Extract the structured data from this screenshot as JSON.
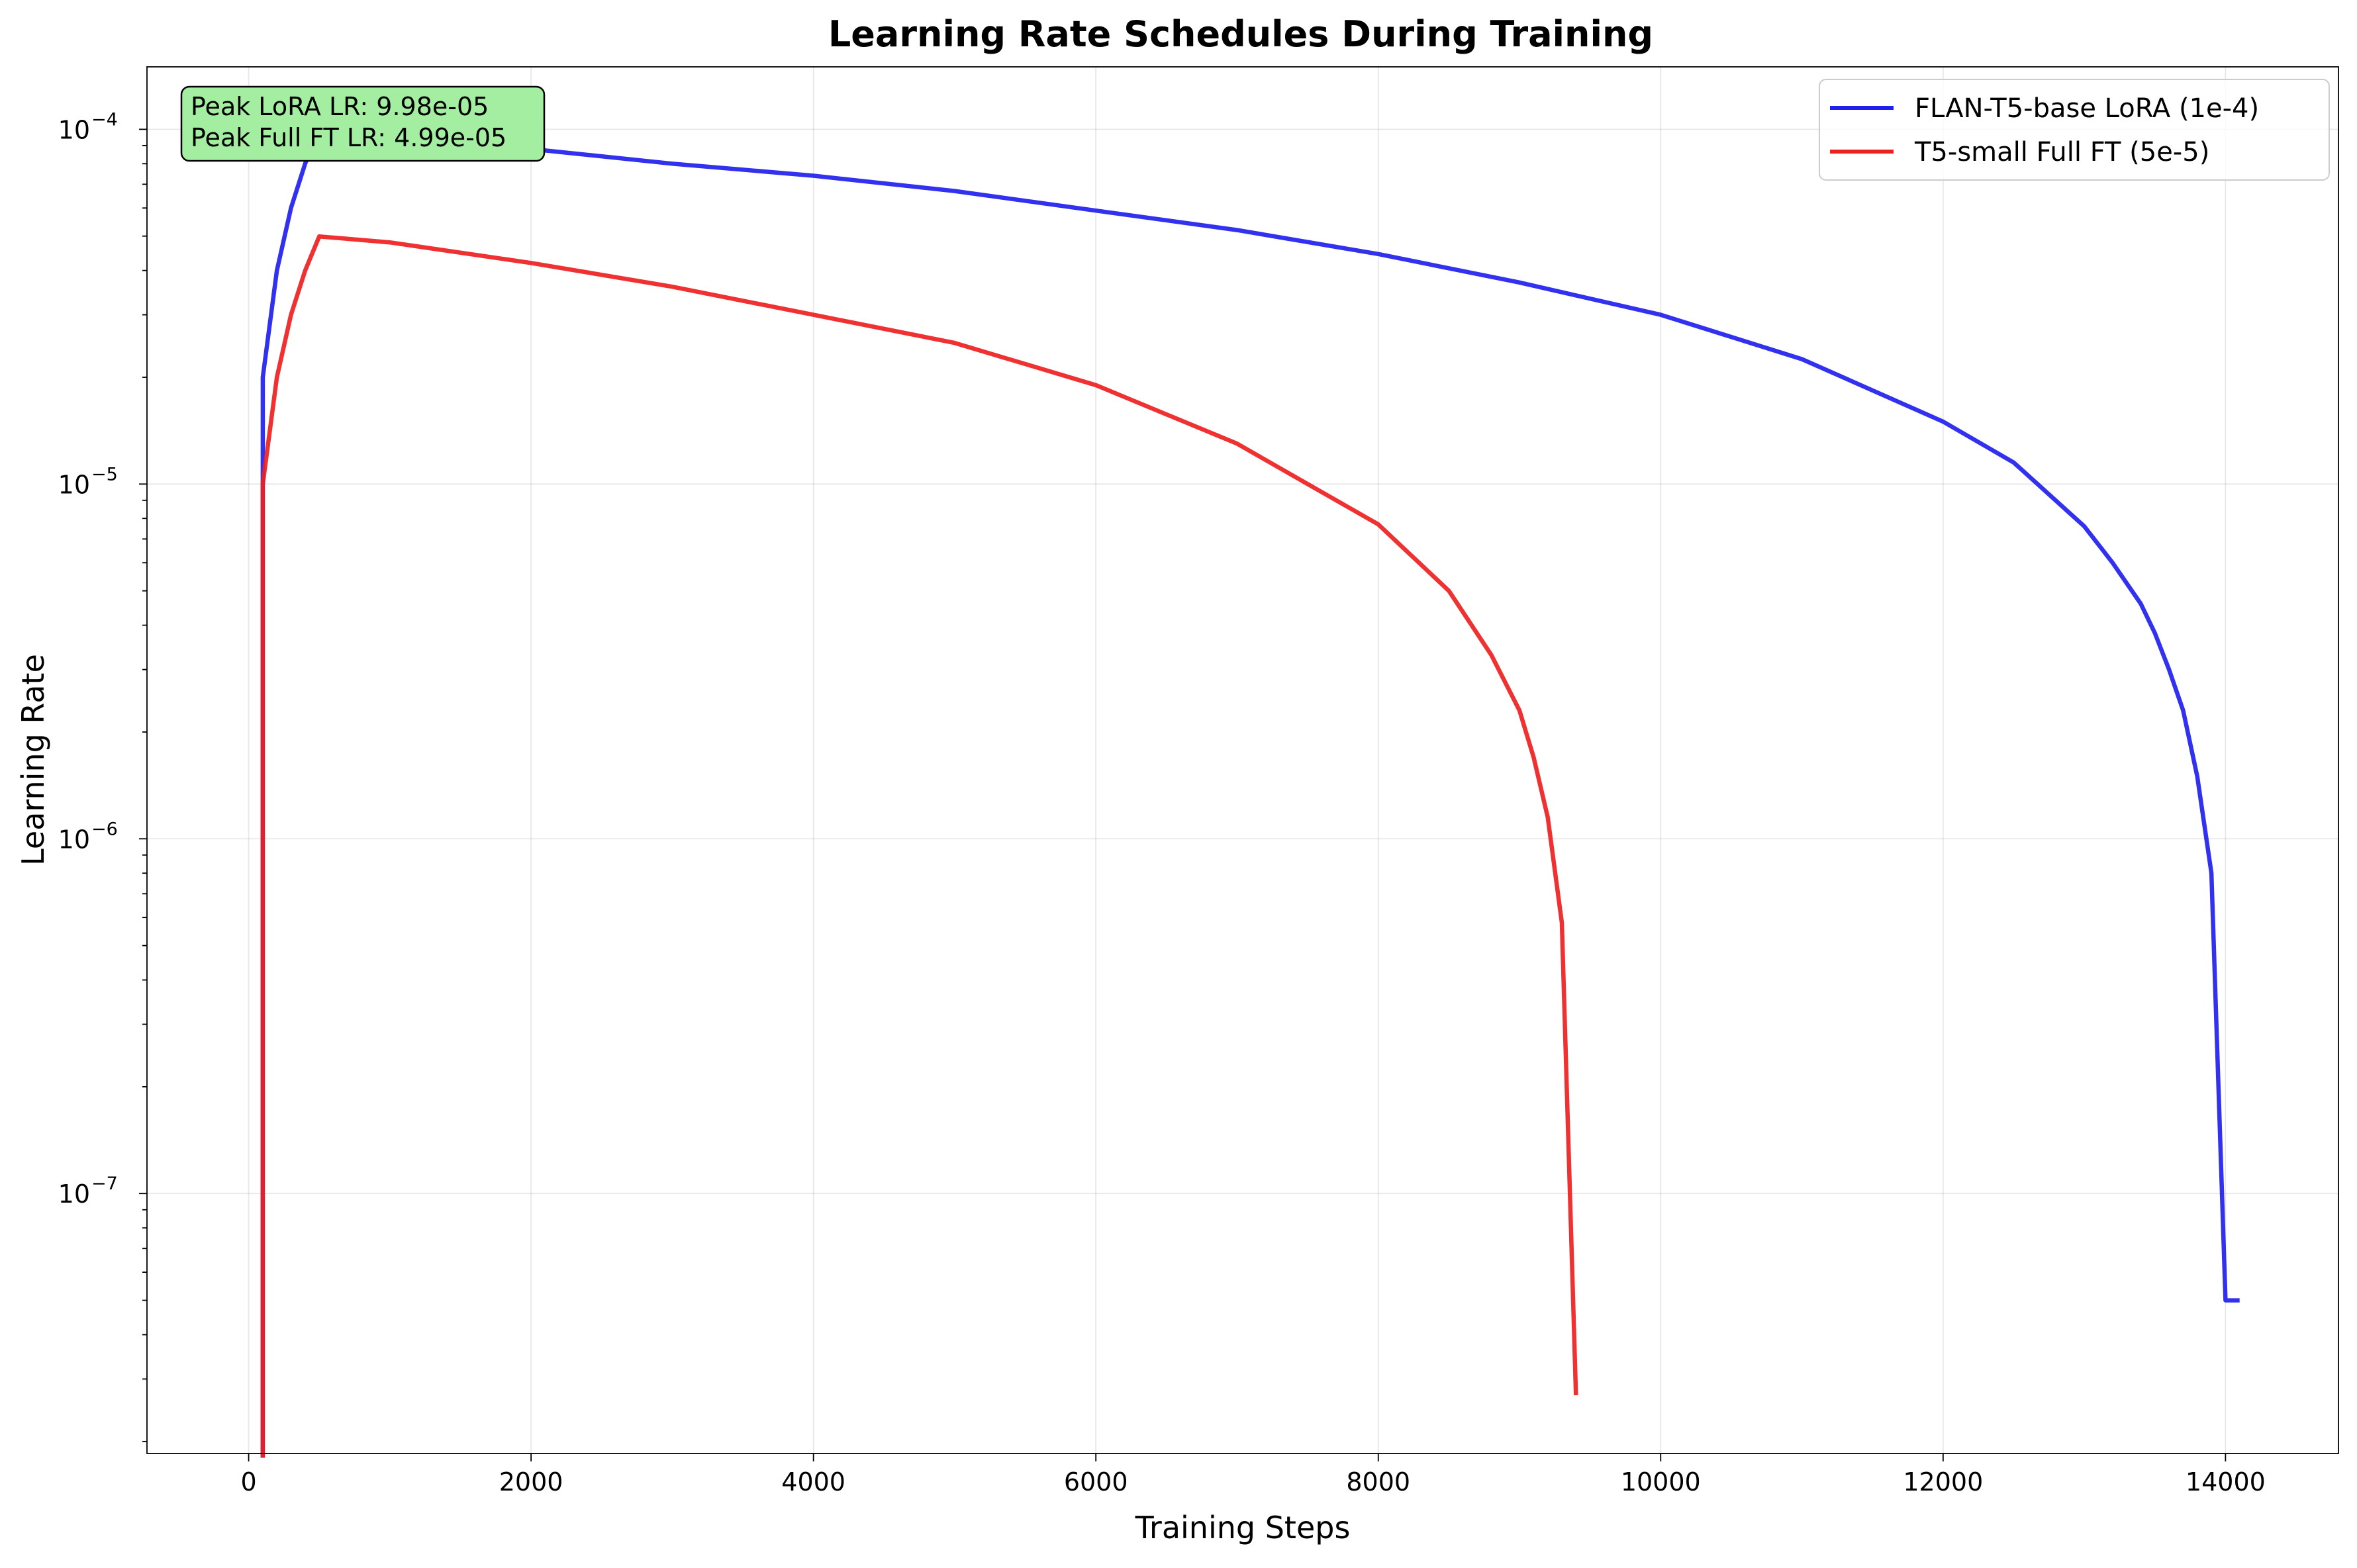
{
  "chart_data": {
    "type": "line",
    "title": "Learning Rate Schedules During Training",
    "xlabel": "Training Steps",
    "ylabel": "Learning Rate",
    "yscale": "log",
    "xlim": [
      -720,
      14800
    ],
    "ylim": [
      1.85e-08,
      0.00015
    ],
    "grid": true,
    "legend_position": "top-right",
    "x_ticks": [
      {
        "value": 0,
        "label": "0"
      },
      {
        "value": 2000,
        "label": "2000"
      },
      {
        "value": 4000,
        "label": "4000"
      },
      {
        "value": 6000,
        "label": "6000"
      },
      {
        "value": 8000,
        "label": "8000"
      },
      {
        "value": 10000,
        "label": "10000"
      },
      {
        "value": 12000,
        "label": "12000"
      },
      {
        "value": 14000,
        "label": "14000"
      }
    ],
    "y_ticks": [
      {
        "value": 1e-07,
        "base": "10",
        "exp": "−7"
      },
      {
        "value": 1e-06,
        "base": "10",
        "exp": "−6"
      },
      {
        "value": 1e-05,
        "base": "10",
        "exp": "−5"
      },
      {
        "value": 0.0001,
        "base": "10",
        "exp": "−4"
      }
    ],
    "series": [
      {
        "name": "FLAN-T5-base LoRA (1e-4)",
        "color": "#2020ee",
        "x": [
          100,
          100,
          200,
          300,
          400,
          500,
          1000,
          2000,
          3000,
          4000,
          5000,
          6000,
          7000,
          8000,
          9000,
          10000,
          11000,
          12000,
          12500,
          13000,
          13200,
          13400,
          13500,
          13600,
          13700,
          13800,
          13900,
          14000,
          14100
        ],
        "y": [
          1.8e-08,
          2e-05,
          4e-05,
          6e-05,
          8e-05,
          9.98e-05,
          9.6e-05,
          8.8e-05,
          8e-05,
          7.4e-05,
          6.7e-05,
          5.9e-05,
          5.2e-05,
          4.45e-05,
          3.7e-05,
          3e-05,
          2.25e-05,
          1.5e-05,
          1.15e-05,
          7.6e-06,
          6e-06,
          4.6e-06,
          3.8e-06,
          3e-06,
          2.3e-06,
          1.5e-06,
          8e-07,
          5e-08,
          5e-08
        ]
      },
      {
        "name": "T5-small Full FT (5e-5)",
        "color": "#ee2020",
        "x": [
          100,
          100,
          200,
          300,
          400,
          500,
          1000,
          2000,
          3000,
          4000,
          5000,
          6000,
          7000,
          7500,
          8000,
          8500,
          8800,
          9000,
          9100,
          9200,
          9300,
          9400
        ],
        "y": [
          1.8e-08,
          1e-05,
          2e-05,
          3e-05,
          4e-05,
          4.99e-05,
          4.8e-05,
          4.2e-05,
          3.6e-05,
          3e-05,
          2.5e-05,
          1.9e-05,
          1.3e-05,
          1e-05,
          7.7e-06,
          5e-06,
          3.3e-06,
          2.3e-06,
          1.7e-06,
          1.15e-06,
          5.8e-07,
          2.7e-08
        ]
      }
    ],
    "annotation": {
      "lines": [
        "Peak LoRA LR: 9.98e-05",
        "Peak Full FT LR: 4.99e-05"
      ],
      "background": "#a3eea0"
    }
  }
}
